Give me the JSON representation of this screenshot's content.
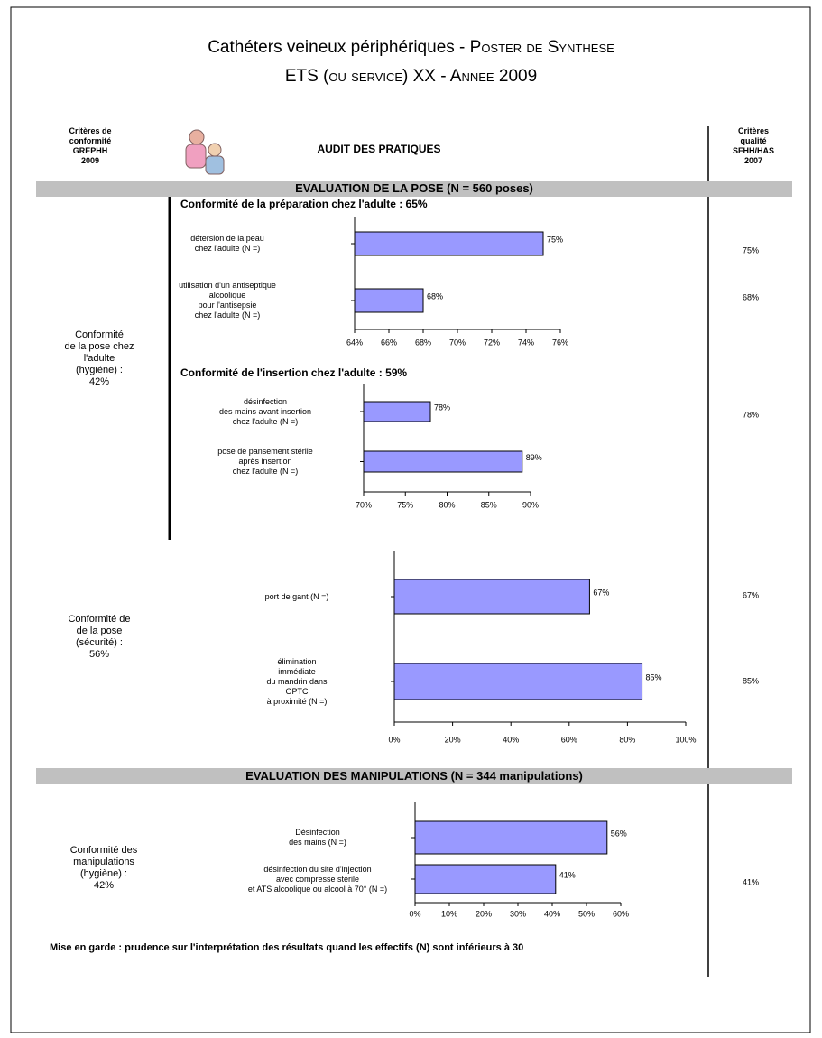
{
  "header": {
    "title_main": "Cathéters veineux périphériques - ",
    "title_caps": "Poster de Synthese",
    "title_line2": "ETS (ou service) XX - Annee 2009"
  },
  "columns": {
    "left_header": "Critères de\nconformité\nGREPHH\n2009",
    "center_header": "AUDIT DES PRATIQUES",
    "right_header": "Critères\nqualité\nSFHH/HAS\n2007"
  },
  "sections": [
    {
      "title": "EVALUATION DE LA POSE (N = 560 poses)"
    },
    {
      "title": "EVALUATION DES MANIPULATIONS (N = 344 manipulations)"
    }
  ],
  "left_labels": [
    "Conformité\nde la pose chez\nl'adulte\n(hygiène) :\n42%",
    "Conformité de\nde la pose\n(sécurité) :\n56%",
    "Conformité des\nmanipulations\n(hygiène) :\n42%"
  ],
  "footer": "Mise en garde : prudence sur l'interprétation des résultats quand les effectifs (N) sont inférieurs à 30",
  "chart_data": [
    {
      "type": "barh",
      "title": "Conformité de la préparation chez l'adulte : 65%",
      "color": "#9999ff",
      "categories": [
        "détersion de la peau\nchez l'adulte (N =)",
        "utilisation d'un antiseptique\nalcoolique\npour l'antisepsie\nchez l'adulte (N =)"
      ],
      "values": [
        75,
        68
      ],
      "value_labels": [
        "75%",
        "68%"
      ],
      "xlim": [
        64,
        76
      ],
      "xticks": [
        {
          "value": 64,
          "label": "64%"
        },
        {
          "value": 66,
          "label": "66%"
        },
        {
          "value": 68,
          "label": "68%"
        },
        {
          "value": 70,
          "label": "70%"
        },
        {
          "value": 72,
          "label": "72%"
        },
        {
          "value": 74,
          "label": "74%"
        },
        {
          "value": 76,
          "label": "76%"
        }
      ]
    },
    {
      "type": "barh",
      "title": "Conformité de l'insertion chez l'adulte : 59%",
      "color": "#9999ff",
      "categories": [
        "désinfection\ndes mains avant insertion\nchez l'adulte (N =)",
        "pose de pansement stérile\naprès insertion\nchez l'adulte (N =)"
      ],
      "values": [
        78,
        89
      ],
      "value_labels": [
        "78%",
        "89%"
      ],
      "xlim": [
        70,
        90
      ],
      "xticks": [
        {
          "value": 70,
          "label": "70%"
        },
        {
          "value": 75,
          "label": "75%"
        },
        {
          "value": 80,
          "label": "80%"
        },
        {
          "value": 85,
          "label": "85%"
        },
        {
          "value": 90,
          "label": "90%"
        }
      ]
    },
    {
      "type": "barh",
      "color": "#9999ff",
      "categories": [
        "port de gant (N =)",
        "élimination\nimmédiate\ndu mandrin dans\nOPTC\nà proximité (N =)"
      ],
      "values": [
        67,
        85
      ],
      "value_labels": [
        "67%",
        "85%"
      ],
      "xlim": [
        0,
        100
      ],
      "xticks": [
        {
          "value": 0,
          "label": "0%"
        },
        {
          "value": 20,
          "label": "20%"
        },
        {
          "value": 40,
          "label": "40%"
        },
        {
          "value": 60,
          "label": "60%"
        },
        {
          "value": 80,
          "label": "80%"
        },
        {
          "value": 100,
          "label": "100%"
        }
      ]
    },
    {
      "type": "barh",
      "color": "#9999ff",
      "categories": [
        "Désinfection\ndes mains (N =)",
        "désinfection du site d'injection\navec compresse stérile\net ATS alcoolique ou alcool à 70° (N =)"
      ],
      "values": [
        56,
        41
      ],
      "value_labels": [
        "56%",
        "41%"
      ],
      "xlim": [
        0,
        60
      ],
      "xticks": [
        {
          "value": 0,
          "label": "0%"
        },
        {
          "value": 10,
          "label": "10%"
        },
        {
          "value": 20,
          "label": "20%"
        },
        {
          "value": 30,
          "label": "30%"
        },
        {
          "value": 40,
          "label": "40%"
        },
        {
          "value": 50,
          "label": "50%"
        },
        {
          "value": 60,
          "label": "60%"
        }
      ]
    }
  ]
}
